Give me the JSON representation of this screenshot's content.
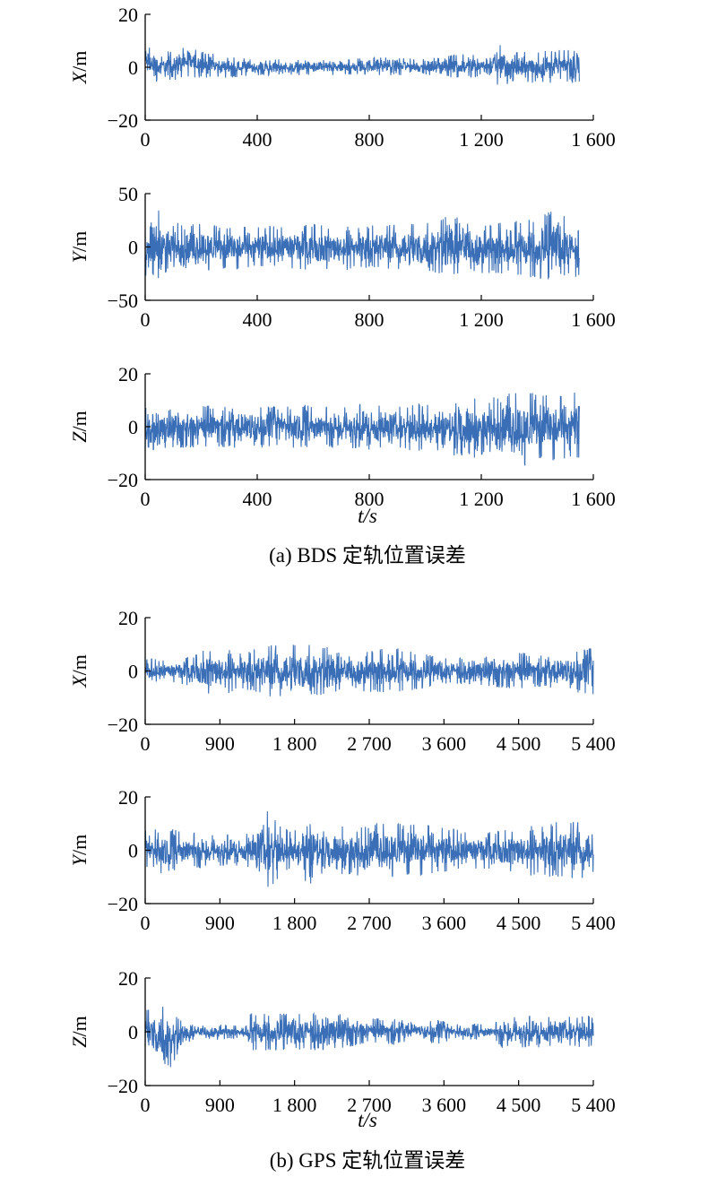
{
  "figure": {
    "caption_a": "(a) BDS 定轨位置误差",
    "caption_b": "(b) GPS 定轨位置误差",
    "xlabel_a": "t/s",
    "xlabel_b": "t/s"
  },
  "line_color": "#3a6fb7",
  "chart_data": [
    {
      "type": "line",
      "panel": "a-X",
      "ylabel": "X/m",
      "xlim": [
        0,
        1600
      ],
      "ylim": [
        -20,
        20
      ],
      "xticks": [
        0,
        400,
        800,
        1200,
        1600
      ],
      "xtick_labels": [
        "0",
        "400",
        "800",
        "1 200",
        "1 600"
      ],
      "yticks": [
        -20,
        0,
        20
      ],
      "ytick_labels": [
        "−20",
        "0",
        "20"
      ],
      "grid": false,
      "series": [
        {
          "x": [
            0,
            40,
            100,
            150,
            200,
            300,
            400,
            500,
            600,
            700,
            800,
            900,
            1000,
            1100,
            1200,
            1280,
            1300,
            1400,
            1500,
            1550
          ],
          "y_upper": [
            10,
            6,
            6,
            9,
            6,
            4,
            3,
            3,
            3,
            3,
            4,
            4,
            3,
            5,
            5,
            10,
            6,
            6,
            7,
            7
          ],
          "y_lower": [
            -5,
            -6,
            -5,
            -4,
            -4,
            -4,
            -3,
            -3,
            -3,
            -3,
            -3,
            -3,
            -3,
            -4,
            -4,
            -8,
            -7,
            -6,
            -6,
            -6
          ]
        }
      ]
    },
    {
      "type": "line",
      "panel": "a-Y",
      "ylabel": "Y/m",
      "xlim": [
        0,
        1600
      ],
      "ylim": [
        -50,
        50
      ],
      "xticks": [
        0,
        400,
        800,
        1200,
        1600
      ],
      "xtick_labels": [
        "0",
        "400",
        "800",
        "1 200",
        "1 600"
      ],
      "yticks": [
        -50,
        0,
        50
      ],
      "ytick_labels": [
        "−50",
        "0",
        "50"
      ],
      "grid": false,
      "series": [
        {
          "x": [
            0,
            40,
            100,
            150,
            200,
            300,
            400,
            500,
            600,
            700,
            800,
            900,
            1000,
            1100,
            1200,
            1300,
            1400,
            1450,
            1500,
            1550
          ],
          "y_upper": [
            30,
            36,
            25,
            22,
            22,
            20,
            20,
            20,
            22,
            20,
            20,
            22,
            22,
            35,
            22,
            24,
            28,
            35,
            30,
            15
          ],
          "y_lower": [
            -28,
            -30,
            -25,
            -28,
            -22,
            -22,
            -20,
            -20,
            -22,
            -22,
            -20,
            -22,
            -25,
            -30,
            -25,
            -25,
            -30,
            -32,
            -28,
            -30
          ]
        }
      ]
    },
    {
      "type": "line",
      "panel": "a-Z",
      "ylabel": "Z/m",
      "xlim": [
        0,
        1600
      ],
      "ylim": [
        -20,
        20
      ],
      "xticks": [
        0,
        400,
        800,
        1200,
        1600
      ],
      "xtick_labels": [
        "0",
        "400",
        "800",
        "1 200",
        "1 600"
      ],
      "yticks": [
        -20,
        0,
        20
      ],
      "ytick_labels": [
        "−20",
        "0",
        "20"
      ],
      "grid": false,
      "series": [
        {
          "x": [
            0,
            40,
            100,
            200,
            300,
            400,
            500,
            600,
            700,
            800,
            900,
            1000,
            1100,
            1200,
            1300,
            1350,
            1400,
            1450,
            1500,
            1550
          ],
          "y_upper": [
            8,
            7,
            7,
            8,
            8,
            8,
            9,
            8,
            8,
            9,
            8,
            9,
            10,
            11,
            13,
            13,
            14,
            13,
            12,
            15
          ],
          "y_lower": [
            -9,
            -9,
            -8,
            -8,
            -8,
            -8,
            -8,
            -8,
            -8,
            -9,
            -9,
            -10,
            -11,
            -12,
            -14,
            -15,
            -13,
            -13,
            -13,
            -13
          ]
        }
      ]
    },
    {
      "type": "line",
      "panel": "b-X",
      "ylabel": "X/m",
      "xlim": [
        0,
        5400
      ],
      "ylim": [
        -20,
        20
      ],
      "xticks": [
        0,
        900,
        1800,
        2700,
        3600,
        4500,
        5400
      ],
      "xtick_labels": [
        "0",
        "900",
        "1 800",
        "2 700",
        "3 600",
        "4 500",
        "5 400"
      ],
      "yticks": [
        -20,
        0,
        20
      ],
      "ytick_labels": [
        "−20",
        "0",
        "20"
      ],
      "grid": false,
      "series": [
        {
          "x": [
            0,
            300,
            600,
            750,
            900,
            1200,
            1500,
            1800,
            2100,
            2250,
            2400,
            2700,
            3000,
            3300,
            3600,
            3900,
            4200,
            4500,
            4800,
            5100,
            5400
          ],
          "y_upper": [
            5,
            4,
            6,
            9,
            9,
            7,
            10,
            10,
            10,
            10,
            7,
            8,
            9,
            7,
            5,
            5,
            6,
            7,
            6,
            7,
            10
          ],
          "y_lower": [
            -5,
            -4,
            -6,
            -9,
            -9,
            -7,
            -10,
            -10,
            -10,
            -10,
            -7,
            -8,
            -8,
            -7,
            -5,
            -5,
            -6,
            -7,
            -6,
            -7,
            -10
          ]
        }
      ]
    },
    {
      "type": "line",
      "panel": "b-Y",
      "ylabel": "Y/m",
      "xlim": [
        0,
        5400
      ],
      "ylim": [
        -20,
        20
      ],
      "xticks": [
        0,
        900,
        1800,
        2700,
        3600,
        4500,
        5400
      ],
      "xtick_labels": [
        "0",
        "900",
        "1 800",
        "2 700",
        "3 600",
        "4 500",
        "5 400"
      ],
      "yticks": [
        -20,
        0,
        20
      ],
      "ytick_labels": [
        "−20",
        "0",
        "20"
      ],
      "grid": false,
      "series": [
        {
          "x": [
            0,
            300,
            600,
            900,
            1200,
            1400,
            1500,
            1650,
            1800,
            1900,
            2000,
            2100,
            2200,
            2300,
            2450,
            2600,
            2700,
            2900,
            3200,
            3600,
            3900,
            4200,
            4500,
            4800,
            5100,
            5400
          ],
          "y_upper": [
            10,
            8,
            7,
            6,
            6,
            12,
            17,
            8,
            8,
            12,
            17,
            10,
            6,
            8,
            10,
            9,
            11,
            10,
            11,
            9,
            7,
            7,
            9,
            10,
            11,
            11
          ],
          "y_lower": [
            -10,
            -8,
            -7,
            -6,
            -6,
            -12,
            -17,
            -8,
            -8,
            -12,
            -17,
            -10,
            -6,
            -8,
            -10,
            -13,
            -9,
            -10,
            -10,
            -9,
            -7,
            -7,
            -9,
            -10,
            -11,
            -11
          ]
        }
      ]
    },
    {
      "type": "line",
      "panel": "b-Z",
      "ylabel": "Z/m",
      "xlim": [
        0,
        5400
      ],
      "ylim": [
        -20,
        20
      ],
      "xticks": [
        0,
        900,
        1800,
        2700,
        3600,
        4500,
        5400
      ],
      "xtick_labels": [
        "0",
        "900",
        "1 800",
        "2 700",
        "3 600",
        "4 500",
        "5 400"
      ],
      "yticks": [
        -20,
        0,
        20
      ],
      "ytick_labels": [
        "−20",
        "0",
        "20"
      ],
      "grid": false,
      "series": [
        {
          "x": [
            0,
            150,
            300,
            450,
            600,
            900,
            1200,
            1250,
            1300,
            1500,
            1800,
            2100,
            2400,
            2700,
            3000,
            3200,
            3300,
            3500,
            3800,
            4200,
            4300,
            4500,
            5000,
            5400
          ],
          "y_upper": [
            8,
            10,
            9,
            4,
            3,
            3,
            2,
            7,
            7,
            7,
            7,
            7,
            7,
            5,
            5,
            5,
            3,
            5,
            3,
            3,
            6,
            6,
            6,
            6
          ],
          "y_lower": [
            -8,
            -12,
            -15,
            -6,
            -3,
            -3,
            -2,
            -7,
            -7,
            -7,
            -7,
            -7,
            -6,
            -4,
            -5,
            -3,
            -2,
            -5,
            -3,
            -3,
            -6,
            -6,
            -6,
            -6
          ]
        }
      ]
    }
  ]
}
